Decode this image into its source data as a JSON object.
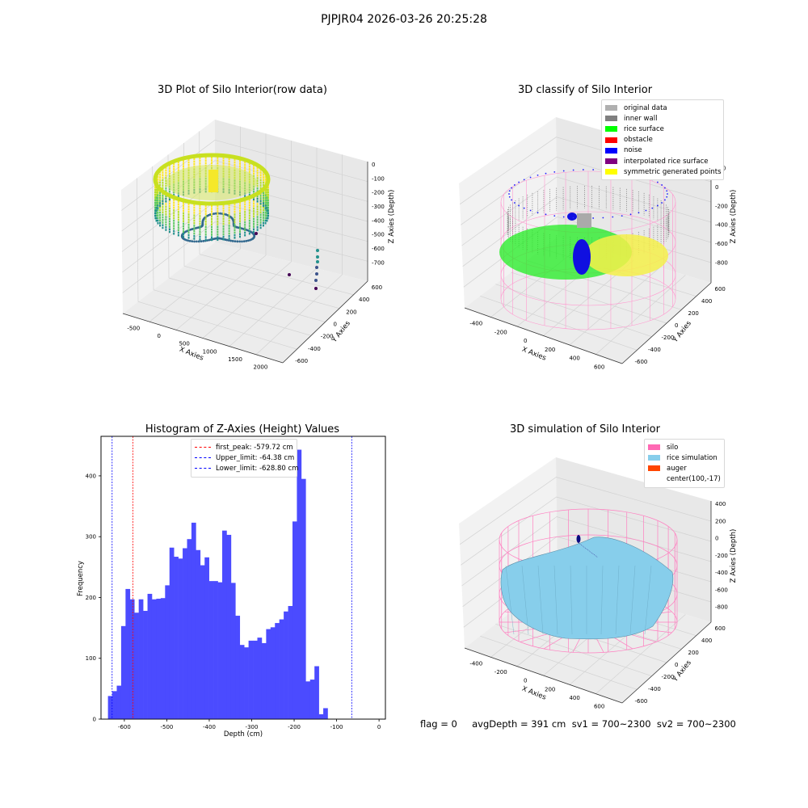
{
  "suptitle": "PJPJR04 2026-03-26 20:25:28",
  "footer": "flag = 0     avgDepth = 391 cm  sv1 = 700~2300  sv2 = 700~2300",
  "colors": {
    "hist_bar": "#4b4bff",
    "first_peak": "#ff0000",
    "limits": "#0000ff"
  },
  "chart_data": [
    {
      "type": "scatter",
      "title": "3D Plot of Silo Interior(row data)",
      "xlabel": "X Axies",
      "ylabel": "Y Axies",
      "zlabel": "Z Axies (Depth)",
      "x_ticks": [
        "-500",
        "0",
        "500",
        "1000",
        "1500",
        "2000"
      ],
      "y_ticks": [
        "-600",
        "-400",
        "-200",
        "0",
        "200",
        "400",
        "600"
      ],
      "z_ticks": [
        "0",
        "-100",
        "-200",
        "-300",
        "-400",
        "-500",
        "-600",
        "-700"
      ],
      "colormap": "viridis",
      "outlier_points": [
        {
          "x": 1850,
          "y": -250,
          "z": -450
        },
        {
          "x": 1850,
          "y": -250,
          "z": -500
        },
        {
          "x": 1850,
          "y": -250,
          "z": -550
        },
        {
          "x": 1850,
          "y": -250,
          "z": -600
        },
        {
          "x": 1850,
          "y": -250,
          "z": -650
        },
        {
          "x": 1850,
          "y": -250,
          "z": -700
        },
        {
          "x": 1850,
          "y": -250,
          "z": -750
        },
        {
          "x": 1450,
          "y": -200,
          "z": -600
        },
        {
          "x": 700,
          "y": 600,
          "z": -250
        }
      ]
    },
    {
      "type": "scatter",
      "title": "3D classify of Silo Interior",
      "xlabel": "X Axies",
      "ylabel": "Y Axies",
      "zlabel": "Z Axies (Depth)",
      "x_ticks": [
        "-400",
        "-200",
        "0",
        "200",
        "400",
        "600"
      ],
      "y_ticks": [
        "-600",
        "-400",
        "-200",
        "0",
        "200",
        "400",
        "600"
      ],
      "z_ticks": [
        "200",
        "0",
        "-200",
        "-400",
        "-600",
        "-800"
      ],
      "legend": [
        {
          "label": "original data",
          "color": "#b0b0b0"
        },
        {
          "label": "inner wall",
          "color": "#808080"
        },
        {
          "label": "rice surface",
          "color": "#00ff00"
        },
        {
          "label": "obstacle",
          "color": "#ff0000"
        },
        {
          "label": "noise",
          "color": "#0000ff"
        },
        {
          "label": "interpolated rice surface",
          "color": "#800080"
        },
        {
          "label": "symmetric generated points",
          "color": "#ffff00"
        }
      ]
    },
    {
      "type": "bar",
      "title": "Histogram of Z-Axies (Height) Values",
      "xlabel": "Depth (cm)",
      "ylabel": "Frequency",
      "xlim": [
        -655,
        15
      ],
      "ylim": [
        0,
        465
      ],
      "x_ticks": [
        -600,
        -500,
        -400,
        -300,
        -200,
        -100,
        0
      ],
      "y_ticks": [
        0,
        100,
        200,
        300,
        400
      ],
      "bin_width": 10.35,
      "bin_start": -638.6,
      "values": [
        38,
        46,
        55,
        153,
        214,
        197,
        175,
        197,
        178,
        206,
        197,
        198,
        199,
        220,
        282,
        267,
        264,
        281,
        296,
        323,
        278,
        253,
        266,
        227,
        227,
        225,
        310,
        303,
        224,
        170,
        122,
        118,
        129,
        129,
        134,
        125,
        148,
        151,
        158,
        164,
        177,
        186,
        325,
        443,
        395,
        62,
        65,
        87,
        8,
        18
      ],
      "vlines": [
        {
          "label": "first_peak: -579.72 cm",
          "x": -579.72,
          "color": "#ff0000"
        },
        {
          "label": "Upper_limit: -64.38 cm",
          "x": -64.38,
          "color": "#0000ff"
        },
        {
          "label": "Lower_limit: -628.80 cm",
          "x": -628.8,
          "color": "#0000ff"
        }
      ]
    },
    {
      "type": "area",
      "title": "3D simulation of Silo Interior",
      "xlabel": "X Axies",
      "ylabel": "Y Axies",
      "zlabel": "Z Axies (Depth)",
      "x_ticks": [
        "-400",
        "-200",
        "0",
        "200",
        "400",
        "600"
      ],
      "y_ticks": [
        "-600",
        "-400",
        "-200",
        "0",
        "200",
        "400",
        "600"
      ],
      "z_ticks": [
        "400",
        "200",
        "0",
        "-200",
        "-400",
        "-600",
        "-800"
      ],
      "legend": [
        {
          "label": "silo",
          "color": "#ff69b4"
        },
        {
          "label": "rice simulation",
          "color": "#87ceeb"
        },
        {
          "label": "auger",
          "color": "#ff4500"
        },
        {
          "label": "center(100,-17)",
          "color": ""
        }
      ]
    }
  ]
}
